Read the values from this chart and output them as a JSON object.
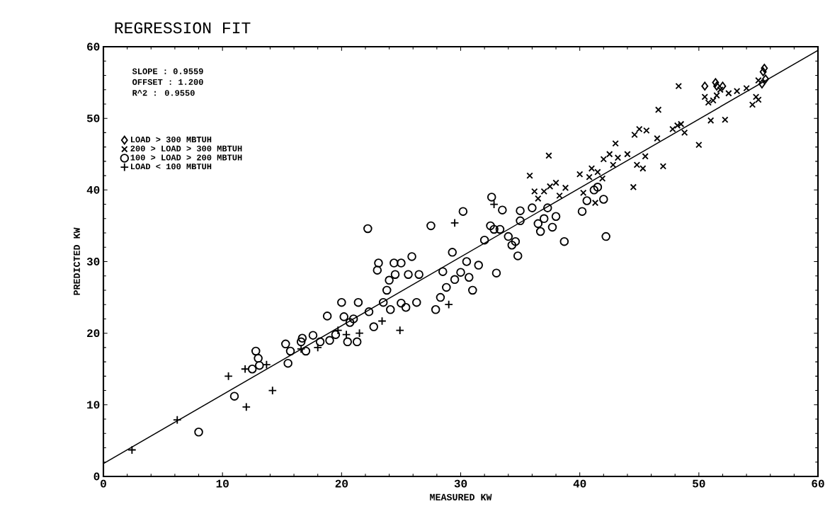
{
  "chart_data": {
    "type": "scatter",
    "title": "REGRESSION FIT",
    "xlabel": "MEASURED KW",
    "ylabel": "PREDICTED KW",
    "xlim": [
      0,
      60
    ],
    "ylim": [
      0,
      60
    ],
    "xticks": [
      0,
      10,
      20,
      30,
      40,
      50,
      60
    ],
    "yticks": [
      0,
      10,
      20,
      30,
      40,
      50,
      60
    ],
    "legend": "top left",
    "annotations": [
      "SLOPE  : 0.9559",
      "OFFSET : 1.200",
      "R^2    : 0.9550"
    ],
    "series": [
      {
        "type": "line",
        "color": "#000000",
        "marker": "none",
        "line_style": "solid",
        "x": [
          0,
          60
        ],
        "values": [
          1.8,
          59.5
        ]
      },
      {
        "name": "LOAD > 300 MBTUH",
        "color": "#000000",
        "marker": "diamond",
        "x": [
          50.5,
          51.4,
          51.5,
          52,
          55.3,
          55.4,
          55.5,
          55.6
        ],
        "values": [
          54.5,
          55,
          54.5,
          54.5,
          54.8,
          56.5,
          57,
          55.5
        ]
      },
      {
        "name": "200 > LOAD > 300 MBTUH",
        "color": "#000000",
        "marker": "x",
        "x": [
          35.8,
          36.2,
          36.5,
          37,
          37.4,
          37.5,
          38,
          38.3,
          38.8,
          40,
          40.3,
          40.8,
          41,
          41.3,
          41.5,
          41.9,
          42,
          42.5,
          42.8,
          43,
          43.2,
          44,
          44.5,
          44.6,
          44.8,
          45,
          45.3,
          45.5,
          45.6,
          46.5,
          46.6,
          47,
          47.8,
          48.2,
          48.3,
          48.5,
          48.8,
          50,
          50.5,
          50.8,
          51,
          51.2,
          51.5,
          51.8,
          52.2,
          52.5,
          53.2,
          54,
          54.5,
          54.8,
          55,
          55
        ],
        "values": [
          42,
          39.8,
          38.8,
          39.8,
          44.8,
          40.5,
          41,
          39.2,
          40.3,
          42.2,
          39.6,
          41.8,
          43,
          38.2,
          42.5,
          41.6,
          44.3,
          45,
          43.5,
          46.5,
          44.5,
          45,
          40.4,
          47.7,
          43.5,
          48.5,
          43,
          44.7,
          48.3,
          47.2,
          51.2,
          43.3,
          48.5,
          49,
          54.5,
          49.2,
          48,
          46.3,
          53,
          52.2,
          49.7,
          52.5,
          53.2,
          54,
          49.8,
          53.5,
          53.8,
          54.2,
          51.9,
          53,
          52.6,
          55.3
        ]
      },
      {
        "name": "100 > LOAD > 200 MBTUH",
        "color": "#000000",
        "marker": "circle",
        "x": [
          8,
          11,
          12.5,
          12.8,
          13,
          13.1,
          15.5,
          15.3,
          15.7,
          16.6,
          16.7,
          17,
          17.6,
          18.2,
          18.8,
          19,
          19.5,
          20,
          20.2,
          20.5,
          20.7,
          21,
          21.3,
          21.4,
          22.2,
          22.3,
          22.7,
          23,
          23.1,
          23.5,
          23.8,
          24,
          24.1,
          24.4,
          24.5,
          25,
          25,
          25.4,
          25.6,
          25.9,
          26.3,
          26.5,
          27.5,
          27.9,
          28.3,
          28.5,
          28.8,
          29.3,
          29.5,
          30,
          30.2,
          30.5,
          30.7,
          31,
          31.5,
          32,
          32.5,
          32.6,
          32.8,
          33,
          33.3,
          33.5,
          34,
          34.3,
          34.6,
          34.8,
          35,
          35,
          36,
          36.5,
          36.7,
          37,
          37.3,
          37.7,
          38,
          38.7,
          40.2,
          40.6,
          41.2,
          41.5,
          42,
          42.2
        ],
        "values": [
          6.2,
          11.2,
          15,
          17.5,
          16.5,
          15.5,
          15.8,
          18.5,
          17.5,
          18.8,
          19.3,
          17.5,
          19.7,
          18.8,
          22.4,
          19,
          19.8,
          24.3,
          22.3,
          18.8,
          21.5,
          22,
          18.8,
          24.3,
          34.6,
          23,
          20.9,
          28.8,
          29.8,
          24.3,
          26,
          27.4,
          23.3,
          29.8,
          28.2,
          29.8,
          24.2,
          23.6,
          28.2,
          30.7,
          24.3,
          28.2,
          35,
          23.3,
          25,
          28.6,
          26.4,
          31.3,
          27.5,
          28.5,
          37,
          30,
          27.8,
          26,
          29.5,
          33,
          35,
          39,
          34.5,
          28.4,
          34.5,
          37.2,
          33.5,
          32.3,
          32.8,
          30.8,
          37.1,
          35.7,
          37.5,
          35.3,
          34.2,
          36,
          37.5,
          34.8,
          36.3,
          32.8,
          37,
          38.5,
          40,
          40.4,
          38.7,
          33.5
        ]
      },
      {
        "name": "LOAD < 100 MBTUH",
        "color": "#000000",
        "marker": "cross",
        "x": [
          2.4,
          6.2,
          10.5,
          12,
          11.9,
          14.2,
          13.7,
          16.6,
          18,
          19.7,
          20.4,
          21.5,
          23.4,
          24.9,
          29,
          29.5,
          32.8
        ],
        "values": [
          3.7,
          7.9,
          14,
          9.7,
          15,
          12,
          15.6,
          17.8,
          18,
          20.4,
          19.8,
          20,
          21.7,
          20.4,
          24,
          35.4,
          38
        ]
      }
    ]
  }
}
